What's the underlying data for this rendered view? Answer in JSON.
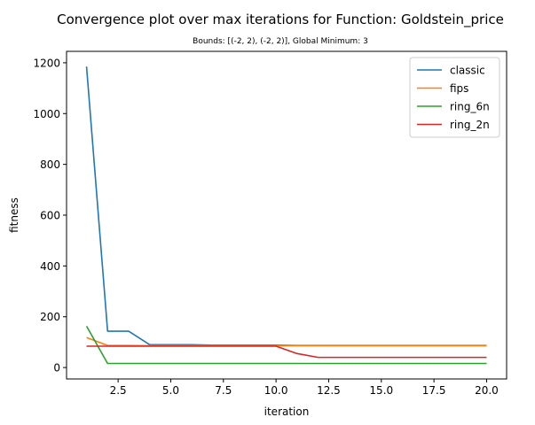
{
  "chart_data": {
    "type": "line",
    "title": "Convergence plot over max iterations for Function: Goldstein_price",
    "subtitle": "Bounds: [(-2, 2), (-2, 2)], Global Minimum: 3",
    "xlabel": "iteration",
    "ylabel": "fitness",
    "xlim": [
      0.05,
      20.95
    ],
    "ylim": [
      -45,
      1245
    ],
    "x_ticks": [
      2.5,
      5.0,
      7.5,
      10.0,
      12.5,
      15.0,
      17.5,
      20.0
    ],
    "x_tick_labels": [
      "2.5",
      "5.0",
      "7.5",
      "10.0",
      "12.5",
      "15.0",
      "17.5",
      "20.0"
    ],
    "y_ticks": [
      0,
      200,
      400,
      600,
      800,
      1000,
      1200
    ],
    "y_tick_labels": [
      "0",
      "200",
      "400",
      "600",
      "800",
      "1000",
      "1200"
    ],
    "grid": false,
    "legend_position": "top-right",
    "x": [
      1,
      2,
      3,
      4,
      5,
      6,
      7,
      8,
      9,
      10,
      11,
      12,
      13,
      14,
      15,
      16,
      17,
      18,
      19,
      20
    ],
    "series": [
      {
        "name": "classic",
        "color": "#1f77b4",
        "values": [
          1185,
          143,
          143,
          90,
          90,
          90,
          88,
          88,
          88,
          88,
          87,
          87,
          87,
          87,
          87,
          87,
          87,
          87,
          87,
          87
        ]
      },
      {
        "name": "fips",
        "color": "#ff7f0e",
        "values": [
          118,
          87,
          87,
          86,
          86,
          86,
          86,
          86,
          86,
          86,
          86,
          86,
          86,
          86,
          86,
          86,
          86,
          86,
          86,
          86
        ]
      },
      {
        "name": "ring_6n",
        "color": "#2ca02c",
        "values": [
          163,
          16,
          16,
          16,
          16,
          16,
          16,
          16,
          16,
          16,
          16,
          16,
          16,
          16,
          16,
          16,
          16,
          16,
          16,
          16
        ]
      },
      {
        "name": "ring_2n",
        "color": "#d62728",
        "values": [
          84,
          84,
          84,
          84,
          84,
          84,
          84,
          84,
          84,
          84,
          55,
          40,
          40,
          40,
          40,
          40,
          40,
          40,
          40,
          40
        ]
      }
    ]
  }
}
